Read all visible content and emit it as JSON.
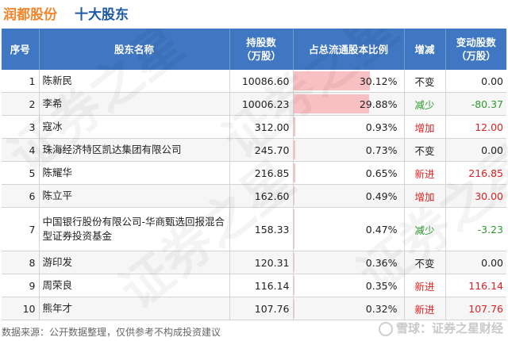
{
  "header": {
    "company": "润都股份",
    "section": "十大股东"
  },
  "columns": {
    "rank": "序号",
    "name": "股东名称",
    "shares": "持股数（万股）",
    "pct": "占总流通股本比例",
    "change": "增减",
    "delta": "变动股数（万股）"
  },
  "rows": [
    {
      "rank": "1",
      "name": "陈新民",
      "shares": "10086.60",
      "pct": "30.12%",
      "pct_value": 30.12,
      "change": "不变",
      "delta": "0.00"
    },
    {
      "rank": "2",
      "name": "李希",
      "shares": "10006.23",
      "pct": "29.88%",
      "pct_value": 29.88,
      "change": "减少",
      "delta": "-80.37"
    },
    {
      "rank": "3",
      "name": "寇冰",
      "shares": "312.00",
      "pct": "0.93%",
      "pct_value": 0.93,
      "change": "增加",
      "delta": "12.00"
    },
    {
      "rank": "4",
      "name": "珠海经济特区凯达集团有限公司",
      "shares": "245.70",
      "pct": "0.73%",
      "pct_value": 0.73,
      "change": "不变",
      "delta": "0.00"
    },
    {
      "rank": "5",
      "name": "陈耀华",
      "shares": "216.85",
      "pct": "0.65%",
      "pct_value": 0.65,
      "change": "新进",
      "delta": "216.85"
    },
    {
      "rank": "6",
      "name": "陈立平",
      "shares": "162.60",
      "pct": "0.49%",
      "pct_value": 0.49,
      "change": "增加",
      "delta": "30.00"
    },
    {
      "rank": "7",
      "name": "中国银行股份有限公司-华商甄选回报混合型证券投资基金",
      "shares": "158.33",
      "pct": "0.47%",
      "pct_value": 0.47,
      "change": "减少",
      "delta": "-3.23"
    },
    {
      "rank": "8",
      "name": "游印发",
      "shares": "120.31",
      "pct": "0.36%",
      "pct_value": 0.36,
      "change": "不变",
      "delta": "0.00"
    },
    {
      "rank": "9",
      "name": "周荣良",
      "shares": "116.14",
      "pct": "0.35%",
      "pct_value": 0.35,
      "change": "新进",
      "delta": "116.14"
    },
    {
      "rank": "10",
      "name": "熊年才",
      "shares": "107.76",
      "pct": "0.32%",
      "pct_value": 0.32,
      "change": "新进",
      "delta": "107.76"
    }
  ],
  "footer": {
    "source": "数据来源：公开数据整理，仅供参考不构成投资建议",
    "brand": "雪球：证券之星财经"
  },
  "colors": {
    "up": "#e02020",
    "down": "#2e9a2e",
    "header_bg": "#3f77c2",
    "bar": "#f8c0c3",
    "company": "#f2852a",
    "section": "#1e5aa8"
  }
}
